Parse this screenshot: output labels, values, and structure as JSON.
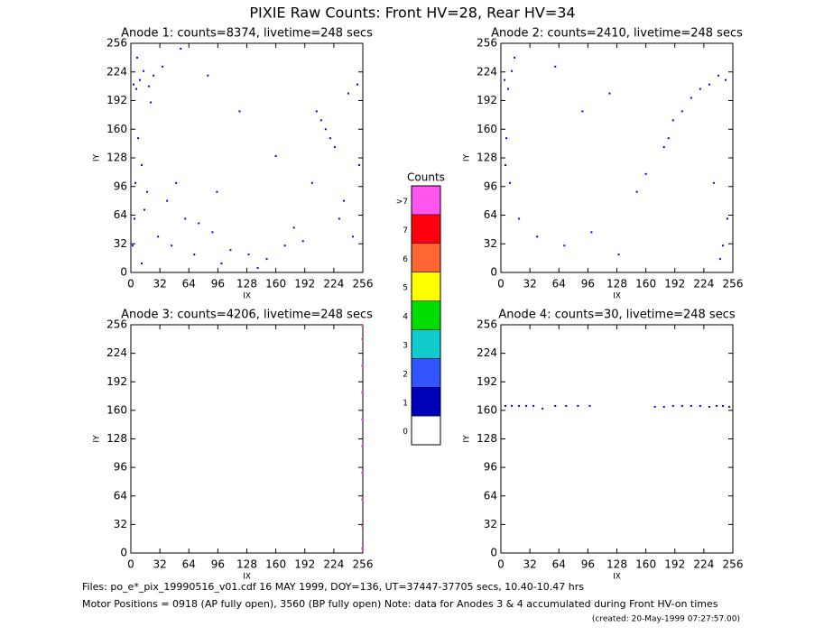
{
  "title": "PIXIE Raw Counts:  Front HV=28, Rear HV=34",
  "chart_data": [
    {
      "type": "scatter",
      "title": "Anode 1: counts=8374, livetime=248 secs",
      "x_label": "IX",
      "y_label": "IY",
      "xlim": [
        0,
        256
      ],
      "ylim": [
        0,
        256
      ],
      "xticks": [
        0,
        32,
        64,
        96,
        128,
        160,
        192,
        224,
        256
      ],
      "yticks": [
        0,
        32,
        64,
        96,
        128,
        160,
        192,
        224,
        256
      ],
      "series": [
        {
          "color": "#0000ff",
          "x": [
            3,
            6,
            10,
            14,
            20,
            25,
            8,
            12,
            18,
            4,
            2,
            30,
            45,
            60,
            75,
            90,
            110,
            130,
            150,
            170,
            190,
            205,
            210,
            215,
            220,
            225,
            240,
            250,
            5,
            15,
            40,
            70,
            100,
            140,
            180,
            230,
            245,
            252,
            7,
            22,
            35,
            55,
            85,
            120,
            160,
            200,
            235,
            12,
            50,
            95
          ],
          "values": [
            210,
            205,
            215,
            225,
            208,
            220,
            150,
            120,
            90,
            60,
            30,
            40,
            30,
            60,
            55,
            45,
            25,
            20,
            15,
            30,
            35,
            180,
            170,
            160,
            150,
            140,
            200,
            210,
            100,
            70,
            80,
            20,
            10,
            5,
            50,
            60,
            40,
            120,
            240,
            190,
            230,
            250,
            220,
            180,
            130,
            100,
            80,
            10,
            100,
            90
          ]
        }
      ]
    },
    {
      "type": "scatter",
      "title": "Anode 2: counts=2410, livetime=248 secs",
      "x_label": "IX",
      "y_label": "IY",
      "xlim": [
        0,
        256
      ],
      "ylim": [
        0,
        256
      ],
      "xticks": [
        0,
        32,
        64,
        96,
        128,
        160,
        192,
        224,
        256
      ],
      "yticks": [
        0,
        32,
        64,
        96,
        128,
        160,
        192,
        224,
        256
      ],
      "series": [
        {
          "color": "#0000ff",
          "x": [
            4,
            8,
            12,
            6,
            10,
            20,
            40,
            70,
            100,
            130,
            160,
            190,
            200,
            210,
            220,
            230,
            240,
            248,
            250,
            245,
            180,
            185,
            15,
            60,
            90,
            120,
            150,
            235,
            242,
            5
          ],
          "values": [
            215,
            205,
            225,
            150,
            100,
            60,
            40,
            30,
            45,
            20,
            110,
            170,
            180,
            195,
            205,
            210,
            220,
            215,
            60,
            30,
            140,
            150,
            240,
            230,
            180,
            200,
            90,
            100,
            15,
            120
          ]
        }
      ]
    },
    {
      "type": "scatter",
      "title": "Anode 3: counts=4206, livetime=248 secs",
      "x_label": "IX",
      "y_label": "IY",
      "xlim": [
        0,
        256
      ],
      "ylim": [
        0,
        256
      ],
      "xticks": [
        0,
        32,
        64,
        96,
        128,
        160,
        192,
        224,
        256
      ],
      "yticks": [
        0,
        32,
        64,
        96,
        128,
        160,
        192,
        224,
        256
      ],
      "series": [
        {
          "color": "#ff55ff",
          "x": [
            255,
            255,
            255,
            255,
            255,
            255,
            255,
            255,
            255,
            255
          ],
          "values": [
            5,
            30,
            60,
            90,
            120,
            150,
            180,
            210,
            240,
            255
          ]
        }
      ]
    },
    {
      "type": "scatter",
      "title": "Anode 4: counts=30, livetime=248 secs",
      "x_label": "IX",
      "y_label": "IY",
      "xlim": [
        0,
        256
      ],
      "ylim": [
        0,
        256
      ],
      "xticks": [
        0,
        32,
        64,
        96,
        128,
        160,
        192,
        224,
        256
      ],
      "yticks": [
        0,
        32,
        64,
        96,
        128,
        160,
        192,
        224,
        256
      ],
      "series": [
        {
          "color": "#0000ff",
          "x": [
            5,
            12,
            20,
            28,
            36,
            46,
            60,
            72,
            85,
            98,
            170,
            180,
            190,
            200,
            210,
            220,
            230,
            238,
            245,
            252
          ],
          "values": [
            165,
            165,
            165,
            165,
            165,
            162,
            165,
            165,
            165,
            165,
            164,
            164,
            165,
            165,
            165,
            165,
            164,
            165,
            165,
            164
          ]
        }
      ]
    }
  ],
  "colorbar": {
    "title": "Counts",
    "categories": [
      "0",
      "1",
      "2",
      "3",
      "4",
      "5",
      "6",
      "7",
      ">7"
    ],
    "colors": [
      "#ffffff",
      "#0000bb",
      "#3355ff",
      "#11cccc",
      "#00dd00",
      "#ffff00",
      "#ff6633",
      "#ff0011",
      "#ff55ee"
    ]
  },
  "footer": [
    "Files: po_e*_pix_19990516_v01.cdf    16 MAY 1999, DOY=136, UT=37447-37705 secs, 10.40-10.47 hrs",
    "Motor Positions = 0918 (AP fully open), 3560 (BP fully open)    Note: data for Anodes 3 & 4 accumulated during Front HV-on times",
    "(created: 20-May-1999 07:27:57.00)"
  ]
}
